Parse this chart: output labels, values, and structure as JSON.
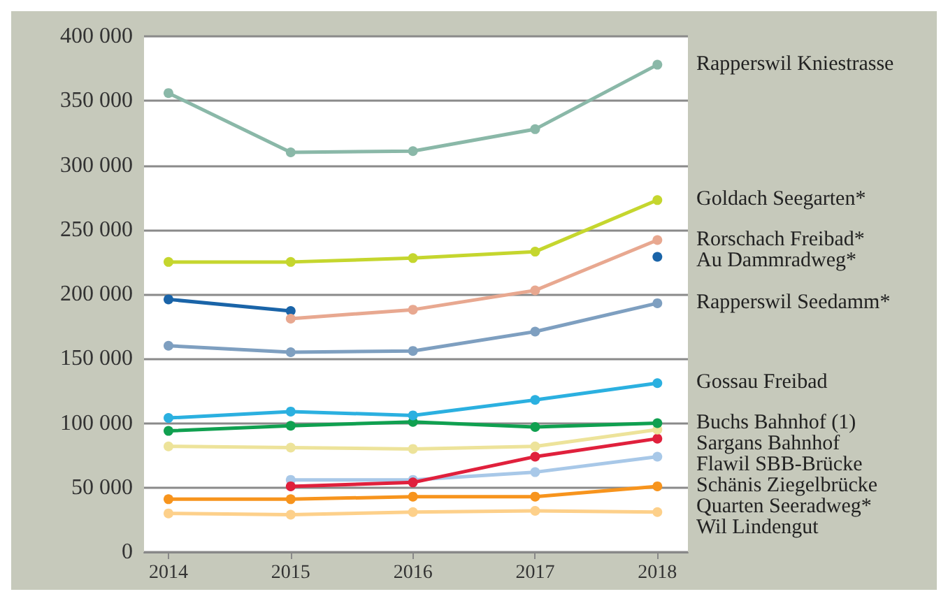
{
  "chart_data": {
    "type": "line",
    "x": [
      2014,
      2015,
      2016,
      2017,
      2018
    ],
    "xlim": [
      2013.8,
      2018.25
    ],
    "xticks": [
      2014,
      2015,
      2016,
      2017,
      2018
    ],
    "ylim": [
      0,
      400000
    ],
    "yticks": [
      {
        "value": 0,
        "label": "0"
      },
      {
        "value": 50000,
        "label": "50 000"
      },
      {
        "value": 100000,
        "label": "100 000"
      },
      {
        "value": 150000,
        "label": "150 000"
      },
      {
        "value": 200000,
        "label": "200 000"
      },
      {
        "value": 250000,
        "label": "250 000"
      },
      {
        "value": 300000,
        "label": "300 000"
      },
      {
        "value": 350000,
        "label": "350 000"
      },
      {
        "value": 400000,
        "label": "400 000"
      }
    ],
    "grid": "y",
    "legend": false,
    "marker": "circle",
    "line_style": "solid",
    "series": [
      {
        "name": "Rapperswil Kniestrasse",
        "color": "#8ab8a8",
        "values": [
          356000,
          310000,
          311000,
          328000,
          378000
        ]
      },
      {
        "name": "Goldach Seegarten*",
        "color": "#c5d62e",
        "values": [
          225000,
          225000,
          228000,
          233000,
          273000
        ]
      },
      {
        "name": "Rorschach Freibad*",
        "color": "#e8a890",
        "values": [
          null,
          181000,
          188000,
          203000,
          242000
        ]
      },
      {
        "name": "Au Dammradweg*",
        "color": "#1a64a8",
        "values": [
          196000,
          187000,
          null,
          null,
          229000
        ]
      },
      {
        "name": "Rapperswil Seedamm*",
        "color": "#7e9fc0",
        "values": [
          160000,
          155000,
          156000,
          171000,
          193000
        ]
      },
      {
        "name": "Gossau Freibad",
        "color": "#2bb0e0",
        "values": [
          104000,
          109000,
          106000,
          118000,
          131000
        ]
      },
      {
        "name": "Buchs Bahnhof (1)",
        "color": "#10a050",
        "values": [
          94000,
          98000,
          101000,
          97000,
          100000
        ]
      },
      {
        "name": "Sargans Bahnhof",
        "color": "#ede39a",
        "values": [
          82000,
          81000,
          80000,
          82000,
          95000
        ]
      },
      {
        "name": "Flawil SBB-Brücke",
        "color": "#e0203c",
        "values": [
          null,
          51000,
          54000,
          74000,
          88000
        ]
      },
      {
        "name": "Schänis Ziegelbrücke",
        "color": "#a8c8e8",
        "values": [
          null,
          56000,
          56000,
          62000,
          74000
        ]
      },
      {
        "name": "Quarten Seeradweg*",
        "color": "#f7941d",
        "values": [
          41000,
          41000,
          43000,
          43000,
          51000
        ]
      },
      {
        "name": "Wil Lindengut",
        "color": "#fdd08a",
        "values": [
          30000,
          29000,
          31000,
          32000,
          31000
        ]
      }
    ]
  }
}
